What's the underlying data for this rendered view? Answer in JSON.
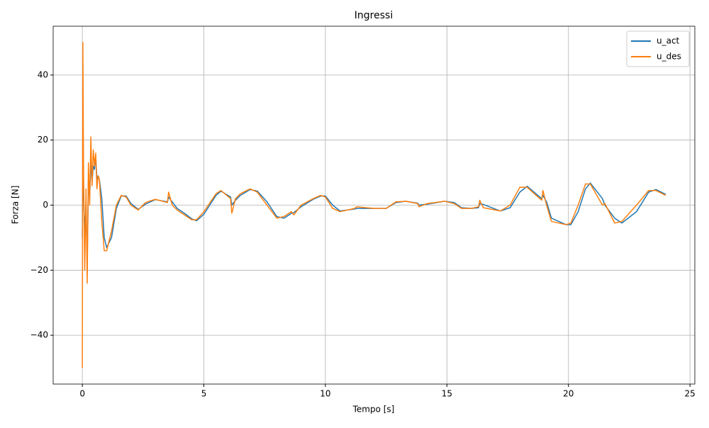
{
  "chart_data": {
    "type": "line",
    "title": "Ingressi",
    "x_label": "Tempo [s]",
    "y_label": "Forza [N]",
    "x": [
      0,
      0.02,
      0.05,
      0.1,
      0.15,
      0.2,
      0.25,
      0.3,
      0.35,
      0.4,
      0.45,
      0.5,
      0.55,
      0.6,
      0.65,
      0.7,
      0.8,
      0.9,
      1.0,
      1.2,
      1.4,
      1.6,
      1.8,
      2.0,
      2.3,
      2.6,
      3.0,
      3.5,
      3.55,
      3.7,
      3.9,
      4.2,
      4.5,
      4.7,
      5.0,
      5.5,
      5.7,
      6.1,
      6.15,
      6.3,
      6.5,
      6.9,
      7.2,
      7.6,
      8.0,
      8.3,
      8.6,
      8.7,
      9.0,
      9.5,
      9.8,
      10.0,
      10.3,
      10.6,
      11.2,
      11.3,
      12.0,
      12.5,
      12.9,
      13.3,
      13.8,
      13.85,
      14.2,
      14.9,
      15.3,
      15.6,
      16.0,
      16.3,
      16.35,
      16.5,
      17.2,
      17.6,
      18.0,
      18.3,
      18.9,
      18.95,
      19.1,
      19.3,
      19.9,
      20.1,
      20.4,
      20.7,
      20.9,
      21.4,
      21.5,
      21.9,
      22.2,
      22.8,
      23.3,
      23.6,
      24.0
    ],
    "series": [
      {
        "name": "u_act",
        "color": "#1f77b4",
        "values": [
          -10,
          10,
          3,
          -8,
          0,
          -18,
          8,
          2,
          13,
          7,
          12,
          11,
          15,
          8,
          9,
          8,
          2,
          -10,
          -13,
          -10,
          -1,
          2.8,
          2.8,
          0.5,
          -1.3,
          0.3,
          1.7,
          1,
          2.5,
          1,
          -1,
          -2.5,
          -4.2,
          -4.8,
          -2.8,
          3,
          4.3,
          2.5,
          0,
          1.5,
          3,
          4.8,
          4.3,
          1,
          -3.5,
          -4,
          -2.5,
          -2.3,
          -0.5,
          1.8,
          2.8,
          2.8,
          0,
          -1.8,
          -1.2,
          -1,
          -1,
          -1,
          0.8,
          1.2,
          0.6,
          0,
          0.3,
          1.2,
          0.8,
          -0.8,
          -1,
          -0.8,
          0.5,
          0.2,
          -1.8,
          -0.8,
          4,
          5.8,
          2,
          3,
          1,
          -4,
          -6,
          -6,
          -2,
          5,
          6.8,
          2,
          0,
          -4,
          -5.5,
          -2,
          4,
          4.8,
          3.3
        ]
      },
      {
        "name": "u_des",
        "color": "#ff7f0e",
        "values": [
          -50,
          50,
          10,
          -20,
          5,
          -24,
          13,
          0,
          21,
          6,
          17,
          12,
          16,
          5,
          9,
          8,
          -5,
          -14,
          -14,
          -8,
          0,
          3,
          2.5,
          0,
          -1.5,
          0.8,
          1.8,
          0.8,
          4,
          0,
          -1.5,
          -3,
          -4.5,
          -4.5,
          -2,
          3.5,
          4.5,
          2,
          -2.5,
          2,
          3.5,
          5,
          4,
          0,
          -4,
          -3.5,
          -2,
          -3,
          0,
          2,
          3,
          2.5,
          -1,
          -2,
          -1,
          -0.5,
          -1,
          -1,
          1,
          1.2,
          0.5,
          -0.5,
          0.5,
          1.2,
          0.5,
          -1,
          -1,
          -0.5,
          1.5,
          -0.8,
          -1.8,
          0,
          5.5,
          5.5,
          1.5,
          4.5,
          0,
          -5,
          -6,
          -5.5,
          0,
          6.5,
          6.5,
          0,
          0.5,
          -5.5,
          -5,
          0,
          4.5,
          4.5,
          3
        ]
      }
    ],
    "xlim": [
      -1.2,
      25.2
    ],
    "ylim": [
      -55,
      55
    ],
    "xticks": [
      0,
      5,
      10,
      15,
      20,
      25
    ],
    "yticks": [
      {
        "value": -40,
        "label": "−40"
      },
      {
        "value": -20,
        "label": "−20"
      },
      0,
      20,
      40
    ],
    "grid": true,
    "legend": "upper right"
  }
}
